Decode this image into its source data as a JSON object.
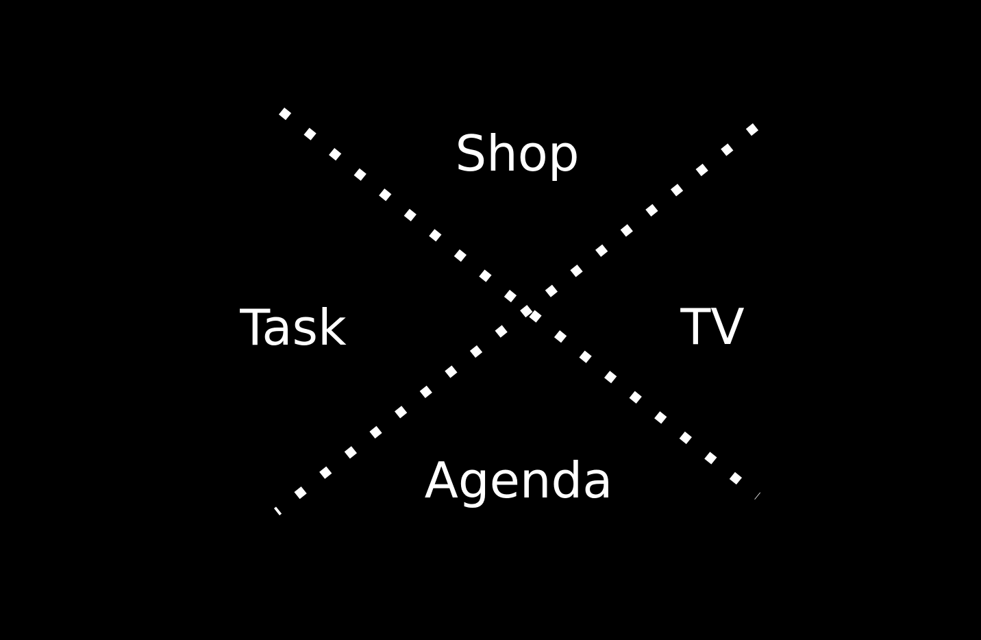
{
  "colors": {
    "background": "#000000",
    "foreground": "#ffffff"
  },
  "labels": {
    "top": "Shop",
    "left": "Task",
    "right": "TV",
    "bottom": "Agenda"
  }
}
